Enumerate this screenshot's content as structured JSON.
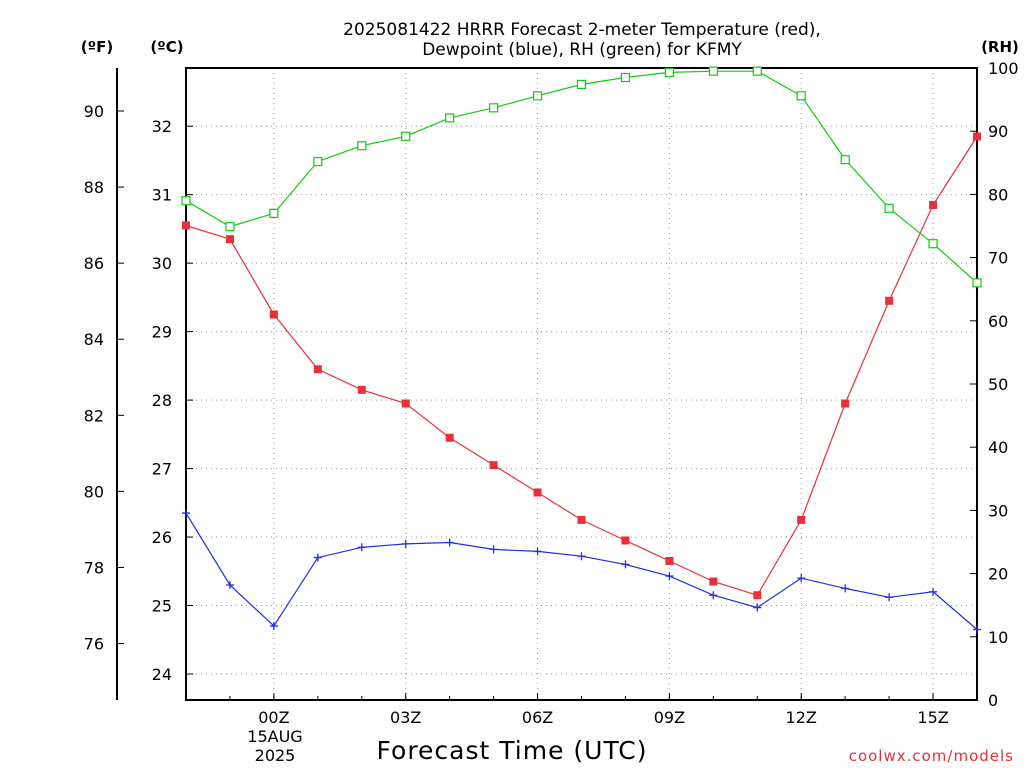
{
  "title_line1": "2025081422 HRRR Forecast 2-meter Temperature (red),",
  "title_line2": "Dewpoint (blue), RH (green) for KFMY",
  "unit_f": "(ºF)",
  "unit_c": "(ºC)",
  "unit_rh": "(RH)",
  "credit": "coolwx.com/models",
  "colors": {
    "temperature": "#e8303a",
    "dewpoint": "#2030e0",
    "rh": "#10cc10"
  },
  "chart_data": {
    "type": "line",
    "title": "2025081422 HRRR Forecast 2-meter Temperature (red), Dewpoint (blue), RH (green) for KFMY",
    "xlabel": "Forecast Time (UTC)",
    "x_tick_labels": [
      "00Z",
      "03Z",
      "06Z",
      "09Z",
      "12Z",
      "15Z"
    ],
    "date_label": [
      "15AUG",
      "2025"
    ],
    "x": [
      "22Z",
      "23Z",
      "00Z",
      "01Z",
      "02Z",
      "03Z",
      "04Z",
      "05Z",
      "06Z",
      "07Z",
      "08Z",
      "09Z",
      "10Z",
      "11Z",
      "12Z",
      "13Z",
      "14Z",
      "15Z",
      "16Z"
    ],
    "y_left_c": {
      "label": "(ºC)",
      "ticks": [
        24,
        25,
        26,
        27,
        28,
        29,
        30,
        31,
        32
      ],
      "range": [
        23.62,
        32.85
      ]
    },
    "y_left_f": {
      "label": "(ºF)",
      "ticks": [
        76,
        78,
        80,
        82,
        84,
        86,
        88,
        90
      ]
    },
    "y_right_rh": {
      "label": "(RH)",
      "ticks": [
        0,
        10,
        20,
        30,
        40,
        50,
        60,
        70,
        80,
        90,
        100
      ],
      "range": [
        0,
        100
      ]
    },
    "series": [
      {
        "name": "Temperature",
        "unit": "C",
        "color": "#e8303a",
        "marker": "filled-square",
        "values": [
          30.55,
          30.35,
          29.25,
          28.45,
          28.15,
          27.95,
          27.45,
          27.05,
          26.65,
          26.25,
          25.95,
          25.65,
          25.35,
          25.15,
          26.25,
          27.95,
          29.45,
          30.85,
          31.85
        ]
      },
      {
        "name": "Dewpoint",
        "unit": "C",
        "color": "#2030e0",
        "marker": "plus",
        "values": [
          26.35,
          25.3,
          24.7,
          25.7,
          25.85,
          25.9,
          25.92,
          25.82,
          25.79,
          25.72,
          25.6,
          25.43,
          25.15,
          24.97,
          25.4,
          25.25,
          25.12,
          25.2,
          24.65
        ]
      },
      {
        "name": "RH",
        "unit": "%",
        "color": "#10cc10",
        "marker": "open-square",
        "values": [
          79,
          74.9,
          77,
          85.2,
          87.7,
          89.2,
          92.1,
          93.7,
          95.6,
          97.4,
          98.5,
          99.3,
          99.5,
          99.5,
          95.6,
          85.5,
          77.8,
          72.2,
          66
        ]
      }
    ],
    "grid": true
  }
}
